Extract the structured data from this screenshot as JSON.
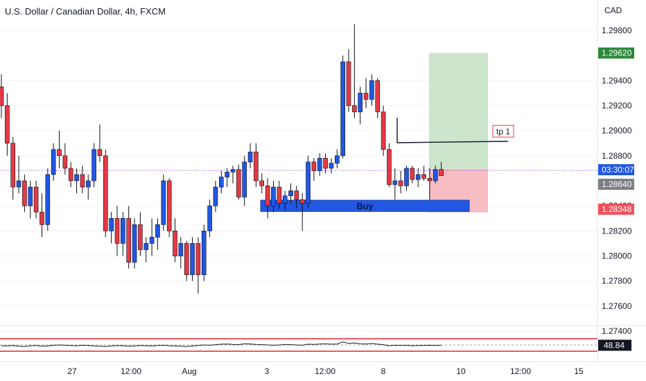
{
  "header": {
    "title": "U.S. Dollar / Canadian Dollar, 4h, FXCM"
  },
  "chart_data": {
    "type": "candlestick",
    "title": "U.S. Dollar / Canadian Dollar, 4h, FXCM",
    "currency": "CAD",
    "ylim": [
      1.2725,
      1.3
    ],
    "y_ticks": [
      "1.29800",
      "1.29400",
      "1.29200",
      "1.29000",
      "1.28800",
      "1.28400",
      "1.28200",
      "1.28000",
      "1.27800",
      "1.27600",
      "1.27400"
    ],
    "x_ticks": [
      "27",
      "12:00",
      "Aug",
      "3",
      "12:00",
      "8",
      "10",
      "12:00",
      "15"
    ],
    "labels": {
      "current_price": "1.28640",
      "countdown": "03:30:07",
      "target_price": "1.29620",
      "stop_price": "1.28348",
      "tp_label": "tp 1",
      "zone_label": "Buy",
      "oscillator_value": "48.84"
    },
    "levels": {
      "entry": 1.28695,
      "target": 1.2962,
      "stop": 1.28348,
      "tp1": 1.28895,
      "buy_zone_top": 1.28445,
      "buy_zone_bottom": 1.28355
    },
    "candles": [
      [
        1.2935,
        1.2945,
        1.291,
        1.292
      ],
      [
        1.292,
        1.293,
        1.288,
        1.289
      ],
      [
        1.289,
        1.2895,
        1.2845,
        1.2855
      ],
      [
        1.2855,
        1.288,
        1.285,
        1.286
      ],
      [
        1.286,
        1.2865,
        1.2835,
        1.284
      ],
      [
        1.284,
        1.286,
        1.283,
        1.2855
      ],
      [
        1.2855,
        1.286,
        1.283,
        1.2835
      ],
      [
        1.2835,
        1.285,
        1.2815,
        1.2825
      ],
      [
        1.2825,
        1.287,
        1.282,
        1.2865
      ],
      [
        1.2865,
        1.289,
        1.286,
        1.2885
      ],
      [
        1.2885,
        1.29,
        1.287,
        1.288
      ],
      [
        1.288,
        1.289,
        1.2865,
        1.287
      ],
      [
        1.287,
        1.2875,
        1.2855,
        1.286
      ],
      [
        1.286,
        1.287,
        1.285,
        1.2865
      ],
      [
        1.2865,
        1.2872,
        1.285,
        1.2855
      ],
      [
        1.2855,
        1.2865,
        1.2845,
        1.286
      ],
      [
        1.286,
        1.289,
        1.2855,
        1.2885
      ],
      [
        1.2885,
        1.2905,
        1.2875,
        1.288
      ],
      [
        1.288,
        1.2885,
        1.2815,
        1.282
      ],
      [
        1.282,
        1.2835,
        1.281,
        1.283
      ],
      [
        1.283,
        1.284,
        1.28,
        1.281
      ],
      [
        1.281,
        1.2835,
        1.28,
        1.283
      ],
      [
        1.283,
        1.284,
        1.279,
        1.2795
      ],
      [
        1.2795,
        1.283,
        1.279,
        1.2825
      ],
      [
        1.2825,
        1.2835,
        1.28,
        1.2805
      ],
      [
        1.2805,
        1.2815,
        1.2795,
        1.281
      ],
      [
        1.281,
        1.283,
        1.28,
        1.2815
      ],
      [
        1.2815,
        1.283,
        1.2805,
        1.2825
      ],
      [
        1.2825,
        1.2865,
        1.282,
        1.286
      ],
      [
        1.286,
        1.2862,
        1.2815,
        1.282
      ],
      [
        1.282,
        1.283,
        1.2795,
        1.28
      ],
      [
        1.28,
        1.2815,
        1.279,
        1.281
      ],
      [
        1.281,
        1.2812,
        1.278,
        1.2785
      ],
      [
        1.2785,
        1.2815,
        1.278,
        1.281
      ],
      [
        1.281,
        1.2815,
        1.277,
        1.2785
      ],
      [
        1.2785,
        1.2825,
        1.278,
        1.282
      ],
      [
        1.282,
        1.2845,
        1.2815,
        1.284
      ],
      [
        1.284,
        1.286,
        1.2835,
        1.2855
      ],
      [
        1.2855,
        1.2868,
        1.285,
        1.2863
      ],
      [
        1.2863,
        1.287,
        1.2855,
        1.2867
      ],
      [
        1.2867,
        1.2872,
        1.2858,
        1.2869
      ],
      [
        1.2869,
        1.2873,
        1.2845,
        1.2847
      ],
      [
        1.2847,
        1.288,
        1.284,
        1.2875
      ],
      [
        1.2875,
        1.289,
        1.287,
        1.2883
      ],
      [
        1.2883,
        1.289,
        1.2855,
        1.286
      ],
      [
        1.286,
        1.2866,
        1.285,
        1.2856
      ],
      [
        1.2856,
        1.2862,
        1.283,
        1.284
      ],
      [
        1.284,
        1.286,
        1.2835,
        1.2855
      ],
      [
        1.2855,
        1.286,
        1.2838,
        1.2842
      ],
      [
        1.2842,
        1.2852,
        1.2836,
        1.2848
      ],
      [
        1.2848,
        1.2858,
        1.2842,
        1.2852
      ],
      [
        1.2852,
        1.2856,
        1.2838,
        1.2845
      ],
      [
        1.2845,
        1.285,
        1.282,
        1.2842
      ],
      [
        1.2842,
        1.288,
        1.2838,
        1.2875
      ],
      [
        1.2875,
        1.2878,
        1.286,
        1.2868
      ],
      [
        1.2868,
        1.2882,
        1.2864,
        1.2878
      ],
      [
        1.2878,
        1.2882,
        1.2866,
        1.287
      ],
      [
        1.287,
        1.2878,
        1.2866,
        1.2874
      ],
      [
        1.2874,
        1.2885,
        1.287,
        1.288
      ],
      [
        1.288,
        1.296,
        1.2878,
        1.2955
      ],
      [
        1.2955,
        1.2965,
        1.2915,
        1.292
      ],
      [
        1.292,
        1.2985,
        1.291,
        1.2915
      ],
      [
        1.2915,
        1.2935,
        1.2905,
        1.293
      ],
      [
        1.293,
        1.2942,
        1.2918,
        1.2925
      ],
      [
        1.2925,
        1.2945,
        1.292,
        1.294
      ],
      [
        1.294,
        1.2942,
        1.291,
        1.2915
      ],
      [
        1.2915,
        1.292,
        1.288,
        1.2885
      ],
      [
        1.2885,
        1.289,
        1.2855,
        1.2857
      ],
      [
        1.2857,
        1.287,
        1.2845,
        1.286
      ],
      [
        1.286,
        1.2868,
        1.285,
        1.2856
      ],
      [
        1.2856,
        1.2872,
        1.2852,
        1.287
      ],
      [
        1.287,
        1.2872,
        1.2858,
        1.2861
      ],
      [
        1.2861,
        1.287,
        1.2855,
        1.2865
      ],
      [
        1.2865,
        1.2872,
        1.286,
        1.2862
      ],
      [
        1.2862,
        1.287,
        1.2845,
        1.286
      ],
      [
        1.286,
        1.2872,
        1.2858,
        1.2869
      ],
      [
        1.2869,
        1.2875,
        1.2866,
        1.2864
      ]
    ],
    "oscillator": {
      "upper_band": 75,
      "lower_band": 25,
      "values": [
        47,
        46,
        48,
        45,
        44,
        47,
        48,
        45,
        46,
        49,
        50,
        49,
        48,
        47,
        49,
        48,
        46,
        45,
        44,
        46,
        48,
        47,
        45,
        46,
        48,
        47,
        46,
        48,
        49,
        47,
        46,
        45,
        44,
        46,
        48,
        50,
        49,
        51,
        53,
        54,
        52,
        51,
        55,
        54,
        52,
        51,
        50,
        49,
        50,
        52,
        51,
        50,
        49,
        53,
        52,
        54,
        55,
        53,
        54,
        62,
        56,
        58,
        55,
        54,
        56,
        53,
        51,
        47,
        49,
        48,
        49,
        47,
        48,
        48,
        49,
        48,
        48.84
      ]
    }
  },
  "colors": {
    "up": "#2157e3",
    "down": "#e53945",
    "axis_text": "#131722",
    "grid": "#f0f3fa",
    "target_box": "#c6e2c6",
    "stop_box": "#f6b6bb",
    "zone": "#2157e3",
    "current_line": "#8a3ad9",
    "target_label": "#2b8a3a",
    "stop_label": "#f0505a",
    "current_label": "#7d7f86",
    "countdown_label": "#2157e3"
  }
}
